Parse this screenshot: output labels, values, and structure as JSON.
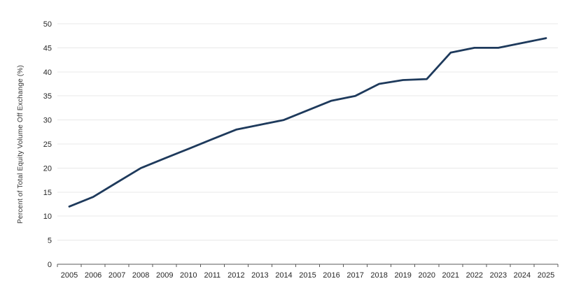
{
  "chart_data": {
    "type": "line",
    "title": "",
    "xlabel": "",
    "ylabel": "Percent of Total Equity Volume Off Exchange (%)",
    "x": [
      "2005",
      "2006",
      "2007",
      "2008",
      "2009",
      "2010",
      "2011",
      "2012",
      "2013",
      "2014",
      "2015",
      "2016",
      "2017",
      "2018",
      "2019",
      "2020",
      "2021",
      "2022",
      "2023",
      "2024",
      "2025"
    ],
    "series": [
      {
        "name": "Percent of Total Equity Volume Off Exchange",
        "values": [
          12,
          14,
          17,
          20,
          22,
          24,
          26,
          28,
          29,
          30,
          32,
          34,
          35,
          37.5,
          38.3,
          38.5,
          44,
          45,
          45,
          46,
          47
        ]
      }
    ],
    "ylim": [
      0,
      50
    ],
    "ytick_step": 5,
    "grid": "horizontal",
    "legend_position": "none",
    "colors": {
      "line": "#1e3a5c",
      "gridline": "#e8e8e8",
      "axis": "#595959",
      "tick_label": "#262626",
      "axis_title": "#333333",
      "background": "#ffffff"
    }
  }
}
